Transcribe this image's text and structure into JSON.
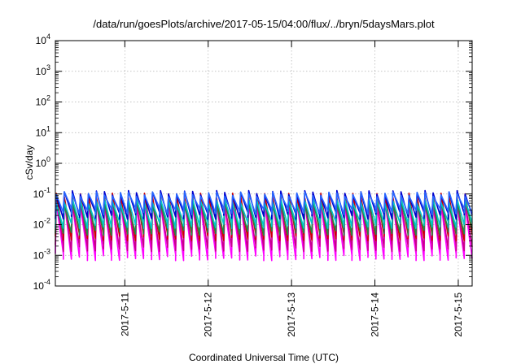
{
  "chart_data": {
    "type": "line",
    "title": "/data/run/goesPlots/archive/2017-05-15/04:00/flux/../bryn/5daysMars.plot",
    "xlabel": "Coordinated Universal Time (UTC)",
    "ylabel": "cSv/day",
    "yscale": "log",
    "ylim": [
      0.0001,
      10000
    ],
    "xlim": [
      "2017-05-10 04:00",
      "2017-05-15 04:00"
    ],
    "grid": true,
    "y_ticks": [
      {
        "value": 0.0001,
        "base": "10",
        "exp": "-4"
      },
      {
        "value": 0.001,
        "base": "10",
        "exp": "-3"
      },
      {
        "value": 0.01,
        "base": "10",
        "exp": "-2"
      },
      {
        "value": 0.1,
        "base": "10",
        "exp": "-1"
      },
      {
        "value": 1,
        "base": "10",
        "exp": "0"
      },
      {
        "value": 10,
        "base": "10",
        "exp": "1"
      },
      {
        "value": 100,
        "base": "10",
        "exp": "2"
      },
      {
        "value": 1000,
        "base": "10",
        "exp": "3"
      },
      {
        "value": 10000,
        "base": "10",
        "exp": "4"
      }
    ],
    "x_ticks": [
      {
        "value": "2017-05-11 00:00",
        "label": "2017-5-11"
      },
      {
        "value": "2017-05-12 00:00",
        "label": "2017-5-12"
      },
      {
        "value": "2017-05-13 00:00",
        "label": "2017-5-13"
      },
      {
        "value": "2017-05-14 00:00",
        "label": "2017-5-14"
      },
      {
        "value": "2017-05-15 00:00",
        "label": "2017-5-15"
      }
    ],
    "sawtooth_cycles": 52,
    "series": [
      {
        "color": "#ff00ff",
        "peak": 0.05,
        "trough": 0.0009
      },
      {
        "color": "#c8008c",
        "peak": 0.06,
        "trough": 0.0018
      },
      {
        "color": "#cc0000",
        "peak": 0.09,
        "trough": 0.004
      },
      {
        "color": "#1e8c46",
        "peak": 0.05,
        "trough": 0.006
      },
      {
        "color": "#00c8c8",
        "peak": 0.06,
        "trough": 0.01
      },
      {
        "color": "#0000cc",
        "peak": 0.11,
        "trough": 0.02
      },
      {
        "color": "#2866ff",
        "peak": 0.1,
        "trough": 0.028
      }
    ]
  }
}
